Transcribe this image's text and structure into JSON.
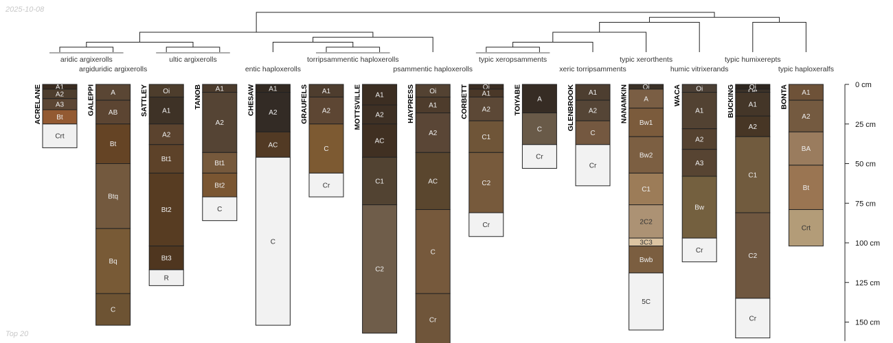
{
  "corner_date": "2025-10-08",
  "corner_caption": "Top 20",
  "colors": {
    "background": "#ffffff",
    "line": "#222222",
    "bracket": "#555555",
    "light_text": "#eeeeee",
    "dark_text": "#333333"
  },
  "chart_data": {
    "type": "diagram",
    "depth_axis": {
      "label_unit": "cm",
      "range": [
        0,
        162
      ],
      "ticks": [
        0,
        25,
        50,
        75,
        100,
        125,
        150
      ],
      "tick_labels": [
        "0 cm",
        "25 cm",
        "50 cm",
        "75 cm",
        "100 cm",
        "125 cm",
        "150 cm"
      ]
    },
    "taxa": [
      {
        "label": "aridic argixerolls",
        "row": 0,
        "profiles": [
          0,
          1
        ]
      },
      {
        "label": "argiduridic argixerolls",
        "row": 1,
        "profiles": [
          1
        ]
      },
      {
        "label": "ultic argixerolls",
        "row": 0,
        "profiles": [
          2,
          3
        ]
      },
      {
        "label": "entic haploxerolls",
        "row": 1,
        "profiles": [
          4
        ]
      },
      {
        "label": "torripsammentic haploxerolls",
        "row": 0,
        "profiles": [
          5,
          6
        ]
      },
      {
        "label": "psammentic haploxerolls",
        "row": 1,
        "profiles": [
          7
        ]
      },
      {
        "label": "typic xeropsamments",
        "row": 0,
        "profiles": [
          8,
          9
        ]
      },
      {
        "label": "xeric torripsamments",
        "row": 1,
        "profiles": [
          10
        ]
      },
      {
        "label": "typic xerorthents",
        "row": 0,
        "profiles": [
          11
        ]
      },
      {
        "label": "humic vitrixerands",
        "row": 1,
        "profiles": [
          12
        ]
      },
      {
        "label": "typic humixerepts",
        "row": 0,
        "profiles": [
          13
        ]
      },
      {
        "label": "typic haploxeralfs",
        "row": 1,
        "profiles": [
          14
        ]
      }
    ],
    "dendrogram": {
      "leaves": [
        0,
        1,
        2,
        3,
        4,
        5,
        6,
        7,
        8,
        9,
        10,
        11,
        12,
        13,
        14
      ],
      "merges": [
        {
          "left": "L0",
          "right": "L1",
          "height": 0.5
        },
        {
          "left": "L2",
          "right": "L3",
          "height": 0.5
        },
        {
          "left": "L5",
          "right": "L6",
          "height": 0.5
        },
        {
          "left": "L8",
          "right": "L9",
          "height": 0.5
        },
        {
          "left": "N0",
          "right": "N1",
          "height": 1
        },
        {
          "left": "L4",
          "right": "N2",
          "height": 1
        },
        {
          "left": "L7",
          "right": "N5",
          "height": 1.5
        },
        {
          "left": "N3",
          "right": "L10",
          "height": 1
        },
        {
          "left": "N7",
          "right": "L11",
          "height": 2
        },
        {
          "left": "N4",
          "right": "N6",
          "height": 2
        },
        {
          "left": "N8",
          "right": "L12",
          "height": 3
        },
        {
          "left": "L13",
          "right": "L14",
          "height": 3
        },
        {
          "left": "N10",
          "right": "N11",
          "height": 3.5
        },
        {
          "left": "N9",
          "right": "N12",
          "height": 4
        }
      ]
    },
    "profiles": [
      {
        "name": "ACRELANE",
        "horizons": [
          {
            "name": "A1",
            "top": 0,
            "bottom": 3,
            "color": "#3a2c20"
          },
          {
            "name": "A2",
            "top": 3,
            "bottom": 9,
            "color": "#4e3e2e"
          },
          {
            "name": "A3",
            "top": 9,
            "bottom": 16,
            "color": "#5c4634"
          },
          {
            "name": "Bt",
            "top": 16,
            "bottom": 25,
            "color": "#935a32"
          },
          {
            "name": "Crt",
            "top": 25,
            "bottom": 40,
            "color": "#f0f0f0"
          }
        ]
      },
      {
        "name": "GALEPPI",
        "horizons": [
          {
            "name": "A",
            "top": 0,
            "bottom": 10,
            "color": "#5a4634"
          },
          {
            "name": "AB",
            "top": 10,
            "bottom": 25,
            "color": "#5c4532"
          },
          {
            "name": "Bt",
            "top": 25,
            "bottom": 50,
            "color": "#654425"
          },
          {
            "name": "Btq",
            "top": 50,
            "bottom": 91,
            "color": "#73593e"
          },
          {
            "name": "Bq",
            "top": 91,
            "bottom": 132,
            "color": "#785a36"
          },
          {
            "name": "C",
            "top": 132,
            "bottom": 152,
            "color": "#6d5333"
          }
        ]
      },
      {
        "name": "SATTLEY",
        "horizons": [
          {
            "name": "Oi",
            "top": 0,
            "bottom": 8,
            "color": "#4d3d2c"
          },
          {
            "name": "A1",
            "top": 8,
            "bottom": 25,
            "color": "#3e3226"
          },
          {
            "name": "A2",
            "top": 25,
            "bottom": 38,
            "color": "#5b432e"
          },
          {
            "name": "Bt1",
            "top": 38,
            "bottom": 56,
            "color": "#5d4229"
          },
          {
            "name": "Bt2",
            "top": 56,
            "bottom": 102,
            "color": "#573c22"
          },
          {
            "name": "Bt3",
            "top": 102,
            "bottom": 117,
            "color": "#4f361f"
          },
          {
            "name": "R",
            "top": 117,
            "bottom": 127,
            "color": "#f0f0f0"
          }
        ]
      },
      {
        "name": "TANOB",
        "horizons": [
          {
            "name": "A1",
            "top": 0,
            "bottom": 5,
            "color": "#4b3b2c"
          },
          {
            "name": "A2",
            "top": 5,
            "bottom": 43,
            "color": "#554434"
          },
          {
            "name": "Bt1",
            "top": 43,
            "bottom": 56,
            "color": "#76593c"
          },
          {
            "name": "Bt2",
            "top": 56,
            "bottom": 71,
            "color": "#7a5632"
          },
          {
            "name": "C",
            "top": 71,
            "bottom": 86,
            "color": "#f2f2f2"
          }
        ]
      },
      {
        "name": "CHESAW",
        "horizons": [
          {
            "name": "A1",
            "top": 0,
            "bottom": 5,
            "color": "#332a22"
          },
          {
            "name": "A2",
            "top": 5,
            "bottom": 30,
            "color": "#332b25"
          },
          {
            "name": "AC",
            "top": 30,
            "bottom": 46,
            "color": "#523a24"
          },
          {
            "name": "C",
            "top": 46,
            "bottom": 152,
            "color": "#f2f2f2"
          }
        ]
      },
      {
        "name": "GRAUFELS",
        "horizons": [
          {
            "name": "A1",
            "top": 0,
            "bottom": 8,
            "color": "#4e3d2e"
          },
          {
            "name": "A2",
            "top": 8,
            "bottom": 25,
            "color": "#5d4633"
          },
          {
            "name": "C",
            "top": 25,
            "bottom": 56,
            "color": "#7d5a32"
          },
          {
            "name": "Cr",
            "top": 56,
            "bottom": 71,
            "color": "#f2f2f2"
          }
        ]
      },
      {
        "name": "MOTTSVILLE",
        "horizons": [
          {
            "name": "A1",
            "top": 0,
            "bottom": 13,
            "color": "#3c2e22"
          },
          {
            "name": "A2",
            "top": 13,
            "bottom": 25,
            "color": "#3e3024"
          },
          {
            "name": "AC",
            "top": 25,
            "bottom": 46,
            "color": "#403022"
          },
          {
            "name": "C1",
            "top": 46,
            "bottom": 76,
            "color": "#524332"
          },
          {
            "name": "C2",
            "top": 76,
            "bottom": 157,
            "color": "#6f5d4a"
          }
        ]
      },
      {
        "name": "HAYPRESS",
        "horizons": [
          {
            "name": "Oi",
            "top": 0,
            "bottom": 8,
            "color": "#534232"
          },
          {
            "name": "A1",
            "top": 8,
            "bottom": 18,
            "color": "#4e3c2c"
          },
          {
            "name": "A2",
            "top": 18,
            "bottom": 43,
            "color": "#5a4636"
          },
          {
            "name": "AC",
            "top": 43,
            "bottom": 79,
            "color": "#5a462e"
          },
          {
            "name": "C",
            "top": 79,
            "bottom": 132,
            "color": "#76593c"
          },
          {
            "name": "Cr",
            "top": 132,
            "bottom": 165,
            "color": "#6f553a"
          }
        ]
      },
      {
        "name": "CORBETT",
        "horizons": [
          {
            "name": "Oi",
            "top": 0,
            "bottom": 3,
            "color": "#3b2d22"
          },
          {
            "name": "A1",
            "top": 3,
            "bottom": 8,
            "color": "#4a3828"
          },
          {
            "name": "A2",
            "top": 8,
            "bottom": 23,
            "color": "#5c4836"
          },
          {
            "name": "C1",
            "top": 23,
            "bottom": 43,
            "color": "#6f5538"
          },
          {
            "name": "C2",
            "top": 43,
            "bottom": 81,
            "color": "#775a3c"
          },
          {
            "name": "Cr",
            "top": 81,
            "bottom": 96,
            "color": "#f2f2f2"
          }
        ]
      },
      {
        "name": "TOIYABE",
        "horizons": [
          {
            "name": "A",
            "top": 0,
            "bottom": 18,
            "color": "#362c24"
          },
          {
            "name": "C",
            "top": 18,
            "bottom": 38,
            "color": "#695a48"
          },
          {
            "name": "Cr",
            "top": 38,
            "bottom": 53,
            "color": "#f2f2f2"
          }
        ]
      },
      {
        "name": "GLENBROOK",
        "horizons": [
          {
            "name": "A1",
            "top": 0,
            "bottom": 10,
            "color": "#4d3e30"
          },
          {
            "name": "A2",
            "top": 10,
            "bottom": 23,
            "color": "#554536"
          },
          {
            "name": "C",
            "top": 23,
            "bottom": 38,
            "color": "#745840"
          },
          {
            "name": "Cr",
            "top": 38,
            "bottom": 64,
            "color": "#f2f2f2"
          }
        ]
      },
      {
        "name": "NANAMKIN",
        "horizons": [
          {
            "name": "Oi",
            "top": 0,
            "bottom": 3,
            "color": "#3a3026"
          },
          {
            "name": "A",
            "top": 3,
            "bottom": 15,
            "color": "#7a5e44"
          },
          {
            "name": "Bw1",
            "top": 15,
            "bottom": 33,
            "color": "#7b5b3c"
          },
          {
            "name": "Bw2",
            "top": 33,
            "bottom": 56,
            "color": "#7c5f42"
          },
          {
            "name": "C1",
            "top": 56,
            "bottom": 76,
            "color": "#9c7c58"
          },
          {
            "name": "2C2",
            "top": 76,
            "bottom": 97,
            "color": "#ac9274"
          },
          {
            "name": "3C3",
            "top": 97,
            "bottom": 102,
            "color": "#dcc4a2"
          },
          {
            "name": "Bwb",
            "top": 102,
            "bottom": 119,
            "color": "#7b5e40"
          },
          {
            "name": "5C",
            "top": 119,
            "bottom": 155,
            "color": "#f2f2f2"
          }
        ]
      },
      {
        "name": "WACA",
        "horizons": [
          {
            "name": "Oi",
            "top": 0,
            "bottom": 5,
            "color": "#4b3f34"
          },
          {
            "name": "A1",
            "top": 5,
            "bottom": 28,
            "color": "#524232"
          },
          {
            "name": "A2",
            "top": 28,
            "bottom": 41,
            "color": "#554230"
          },
          {
            "name": "A3",
            "top": 41,
            "bottom": 58,
            "color": "#574432"
          },
          {
            "name": "Bw",
            "top": 58,
            "bottom": 97,
            "color": "#74603f"
          },
          {
            "name": "Cr",
            "top": 97,
            "bottom": 112,
            "color": "#f2f2f2"
          }
        ]
      },
      {
        "name": "BUCKING",
        "horizons": [
          {
            "name": "Oi",
            "top": 0,
            "bottom": 3,
            "color": "#2e261f"
          },
          {
            "name": "Oe",
            "top": 3,
            "bottom": 5,
            "color": "#3b3128"
          },
          {
            "name": "A1",
            "top": 5,
            "bottom": 20,
            "color": "#443628"
          },
          {
            "name": "A2",
            "top": 20,
            "bottom": 33,
            "color": "#473625"
          },
          {
            "name": "C1",
            "top": 33,
            "bottom": 81,
            "color": "#715b3e"
          },
          {
            "name": "C2",
            "top": 81,
            "bottom": 135,
            "color": "#6f5740"
          },
          {
            "name": "Cr",
            "top": 135,
            "bottom": 160,
            "color": "#f2f2f2"
          }
        ]
      },
      {
        "name": "BONTA",
        "horizons": [
          {
            "name": "A1",
            "top": 0,
            "bottom": 10,
            "color": "#6e5238"
          },
          {
            "name": "A2",
            "top": 10,
            "bottom": 30,
            "color": "#745a40"
          },
          {
            "name": "BA",
            "top": 30,
            "bottom": 51,
            "color": "#9a7c5e"
          },
          {
            "name": "Bt",
            "top": 51,
            "bottom": 79,
            "color": "#9a7552"
          },
          {
            "name": "Crt",
            "top": 79,
            "bottom": 102,
            "color": "#b39c78"
          }
        ]
      }
    ]
  }
}
